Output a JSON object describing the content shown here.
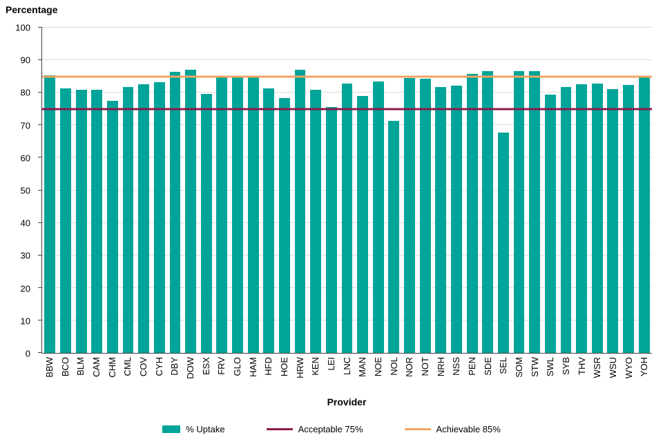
{
  "legend": [
    {
      "label": "% Uptake",
      "type": "swatch",
      "color": "#00A499"
    },
    {
      "label": "Acceptable 75%",
      "type": "line",
      "color": "#8B1A4A"
    },
    {
      "label": "Achievable 85%",
      "type": "line",
      "color": "#F4A460"
    }
  ],
  "chart_data": {
    "type": "bar",
    "title": "Percentage",
    "xlabel": "Provider",
    "ylabel": "Percentage",
    "ylim": [
      0,
      100
    ],
    "ytick_step": 10,
    "grid": true,
    "legend_position": "bottom",
    "bar_color": "#00A499",
    "gridline_color": "#d9d9d9",
    "categories": [
      "BBW",
      "BCO",
      "BLM",
      "CAM",
      "CHM",
      "CML",
      "COV",
      "CYH",
      "DBY",
      "DOW",
      "ESX",
      "FRV",
      "GLO",
      "HAM",
      "HFD",
      "HOE",
      "HRW",
      "KEN",
      "LEI",
      "LNC",
      "MAN",
      "NOE",
      "NOL",
      "NOR",
      "NOT",
      "NRH",
      "NSS",
      "PEN",
      "SDE",
      "SEL",
      "SOM",
      "STW",
      "SWL",
      "SYB",
      "THV",
      "WSR",
      "WSU",
      "WYO",
      "YOH"
    ],
    "values": [
      85.4,
      81.4,
      80.8,
      81.0,
      77.5,
      81.7,
      82.6,
      83.2,
      86.5,
      87.0,
      79.6,
      84.8,
      84.8,
      85.2,
      81.4,
      78.4,
      87.1,
      80.8,
      75.6,
      82.9,
      79.0,
      83.5,
      71.4,
      84.6,
      84.2,
      81.8,
      82.2,
      85.7,
      86.6,
      67.8,
      86.6,
      86.6,
      79.4,
      81.8,
      82.5,
      82.9,
      81.2,
      82.3,
      85.2
    ],
    "reference_lines": [
      {
        "label": "Acceptable 75%",
        "value": 75,
        "color": "#8B1A4A"
      },
      {
        "label": "Achievable 85%",
        "value": 85,
        "color": "#F4A460"
      }
    ]
  }
}
